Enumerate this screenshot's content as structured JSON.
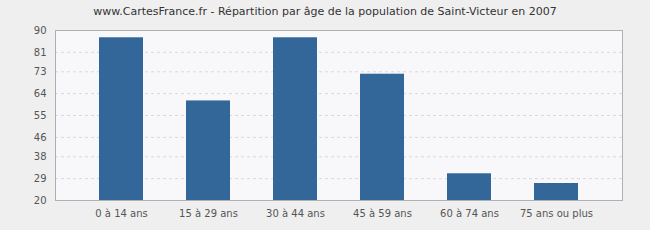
{
  "chart_data": {
    "type": "bar",
    "title": "www.CartesFrance.fr - Répartition par âge de la population de Saint-Victeur en 2007",
    "categories": [
      "0 à 14 ans",
      "15 à 29 ans",
      "30 à 44 ans",
      "45 à 59 ans",
      "60 à 74 ans",
      "75 ans ou plus"
    ],
    "values": [
      87,
      61,
      87,
      72,
      31,
      27
    ],
    "color": "#336699",
    "ylim": [
      20,
      90
    ],
    "yticks": [
      20,
      29,
      38,
      46,
      55,
      64,
      73,
      81,
      90
    ],
    "grid": true
  }
}
